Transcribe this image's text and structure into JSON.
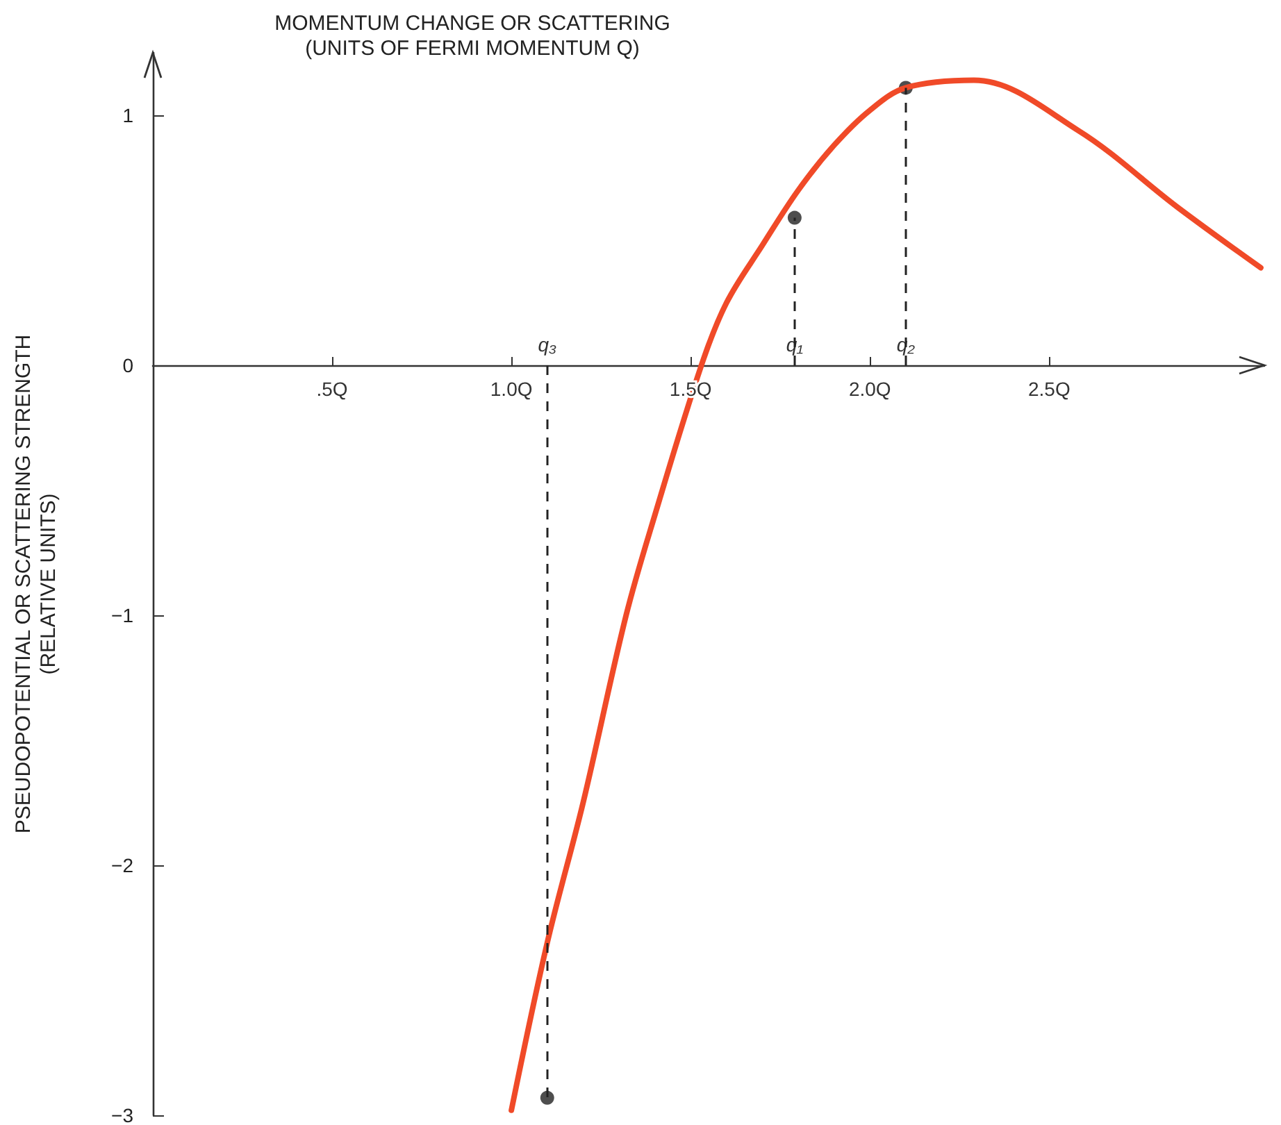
{
  "chart_data": {
    "type": "line",
    "xlabel": "MOMENTUM CHANGE OR SCATTERING\n(UNITS OF FERMI MOMENTUM Q)",
    "ylabel": "PSEUDOPOTENTIAL OR SCATTERING STRENGTH\n(RELATIVE UNITS)",
    "xlim": [
      0,
      3.1
    ],
    "xticks": [
      {
        "value": 0.5,
        "label": ".5Q"
      },
      {
        "value": 1.0,
        "label": "1.0Q"
      },
      {
        "value": 1.5,
        "label": "1.5Q"
      },
      {
        "value": 2.0,
        "label": "2.0Q"
      },
      {
        "value": 2.5,
        "label": "2.5Q"
      }
    ],
    "ylim": [
      -3,
      1.25
    ],
    "yticks": [
      {
        "value": -3,
        "label": "−3"
      },
      {
        "value": -2,
        "label": "−2"
      },
      {
        "value": -1,
        "label": "−1"
      },
      0,
      1
    ],
    "series": [
      {
        "color": "#f04a28",
        "marker": "none",
        "line_style": "solid",
        "x": [
          1.0,
          1.1,
          1.2,
          1.32,
          1.4,
          1.53,
          1.6,
          1.7,
          1.8,
          1.9,
          2.0,
          2.1,
          2.29,
          2.58,
          2.86,
          3.09
        ],
        "values": [
          -2.98,
          -2.31,
          -1.75,
          -1.0,
          -0.6,
          0.0,
          0.25,
          0.48,
          0.7,
          0.88,
          1.02,
          1.11,
          1.14,
          0.94,
          0.63,
          0.39
        ]
      },
      {
        "type": "lollipop",
        "color": "#222222",
        "marker": "circle",
        "line_style": "dashed",
        "x": [
          1.79,
          2.1,
          1.1
        ],
        "values": [
          0.59,
          1.11,
          -2.93
        ]
      }
    ],
    "annotations": [
      "q₁",
      "q₂",
      "q₃"
    ]
  }
}
